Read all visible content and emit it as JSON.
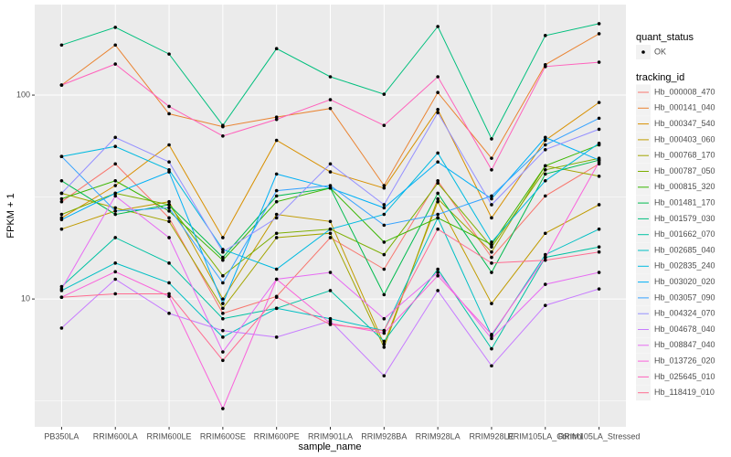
{
  "chart_data": {
    "type": "line",
    "log_y": true,
    "grid": true,
    "x_label": "sample_name",
    "y_label": "FPKM + 1",
    "categories": [
      "PB350LA",
      "RRIM600LA",
      "RRIM600LE",
      "RRIM600SE",
      "RRIM600PE",
      "RRIM901LA",
      "RRIM928BA",
      "RRIM928LA",
      "RRIM928LE",
      "RRIM105LA_Control",
      "RRIM105LA_Stressed"
    ],
    "ylim": [
      2.36,
      278
    ],
    "yticks": [
      10,
      100
    ],
    "point_legend": {
      "title": "quant_status",
      "labels": [
        "OK"
      ]
    },
    "legend_title": "tracking_id",
    "series": [
      {
        "name": "Hb_000008_470",
        "color": "#F8766D",
        "values": [
          30,
          46,
          25,
          8.5,
          10.3,
          20,
          14,
          38,
          16,
          32,
          46
        ]
      },
      {
        "name": "Hb_000141_040",
        "color": "#EA8331",
        "values": [
          112,
          176,
          81,
          70,
          78,
          86,
          36,
          103,
          49,
          141,
          200
        ]
      },
      {
        "name": "Hb_000347_540",
        "color": "#D89000",
        "values": [
          25,
          36,
          57,
          20,
          60,
          42,
          35,
          85,
          25,
          60,
          92
        ]
      },
      {
        "name": "Hb_000403_060",
        "color": "#C09B00",
        "values": [
          22,
          27,
          30,
          10,
          26,
          24,
          6,
          30,
          9.5,
          21,
          29
        ]
      },
      {
        "name": "Hb_000768_170",
        "color": "#A3A500",
        "values": [
          33,
          28,
          24,
          9,
          20,
          21,
          5.8,
          31,
          17,
          45,
          40
        ]
      },
      {
        "name": "Hb_000787_050",
        "color": "#7CAE00",
        "values": [
          26,
          33,
          29,
          13,
          21,
          22,
          16.5,
          37,
          18,
          43,
          49
        ]
      },
      {
        "name": "Hb_000815_320",
        "color": "#39B600",
        "values": [
          31,
          38,
          27,
          15.5,
          30,
          35,
          19,
          25,
          18.5,
          45,
          57
        ]
      },
      {
        "name": "Hb_001481_170",
        "color": "#00BB4E",
        "values": [
          38,
          26,
          29,
          16,
          32,
          35,
          10.5,
          33,
          13.5,
          41,
          48
        ]
      },
      {
        "name": "Hb_001579_030",
        "color": "#00BF7D",
        "values": [
          176,
          215,
          159,
          71,
          169,
          123,
          101,
          217,
          61,
          196,
          224
        ]
      },
      {
        "name": "Hb_001662_070",
        "color": "#00C1A3",
        "values": [
          11.5,
          20,
          15,
          8,
          9,
          11,
          6.2,
          14,
          5.7,
          16,
          18
        ]
      },
      {
        "name": "Hb_002685_040",
        "color": "#00BFC4",
        "values": [
          11,
          15,
          12,
          6.5,
          9,
          8,
          7,
          25,
          6.6,
          16.5,
          22
        ]
      },
      {
        "name": "Hb_002835_240",
        "color": "#00BAE0",
        "values": [
          50,
          56,
          43,
          17.5,
          14,
          22,
          26,
          52,
          19,
          38,
          58
        ]
      },
      {
        "name": "Hb_003020_020",
        "color": "#00B0F6",
        "values": [
          24.5,
          33,
          42,
          9.5,
          41,
          35,
          28,
          47,
          31,
          62,
          48
        ]
      },
      {
        "name": "Hb_003057_090",
        "color": "#35A2FF",
        "values": [
          50,
          27,
          28,
          12,
          34,
          36,
          23,
          26,
          32,
          57,
          77
        ]
      },
      {
        "name": "Hb_004324_070",
        "color": "#9590FF",
        "values": [
          33,
          62,
          47,
          17,
          25,
          46,
          29,
          82,
          29,
          54,
          68
        ]
      },
      {
        "name": "Hb_004678_040",
        "color": "#C77CFF",
        "values": [
          7.2,
          12.5,
          8.5,
          7,
          6.5,
          7.8,
          4.2,
          11,
          4.7,
          9.3,
          11.2
        ]
      },
      {
        "name": "Hb_008847_040",
        "color": "#E76BF3",
        "values": [
          11.2,
          32,
          20,
          5.5,
          12.5,
          13.5,
          8,
          13.5,
          6.4,
          11.8,
          13.5
        ]
      },
      {
        "name": "Hb_013726_020",
        "color": "#FA62DB",
        "values": [
          10.2,
          13.6,
          10.3,
          2.9,
          12.5,
          7.6,
          6.8,
          13,
          6.7,
          16,
          47
        ]
      },
      {
        "name": "Hb_025645_010",
        "color": "#FF62BC",
        "values": [
          112,
          142,
          88,
          63,
          76,
          95,
          71,
          123,
          43,
          138,
          145
        ]
      },
      {
        "name": "Hb_118419_010",
        "color": "#FF6C91",
        "values": [
          10.2,
          10.6,
          10.6,
          5,
          10.2,
          7.5,
          7,
          22,
          15,
          15.5,
          17
        ]
      }
    ]
  }
}
